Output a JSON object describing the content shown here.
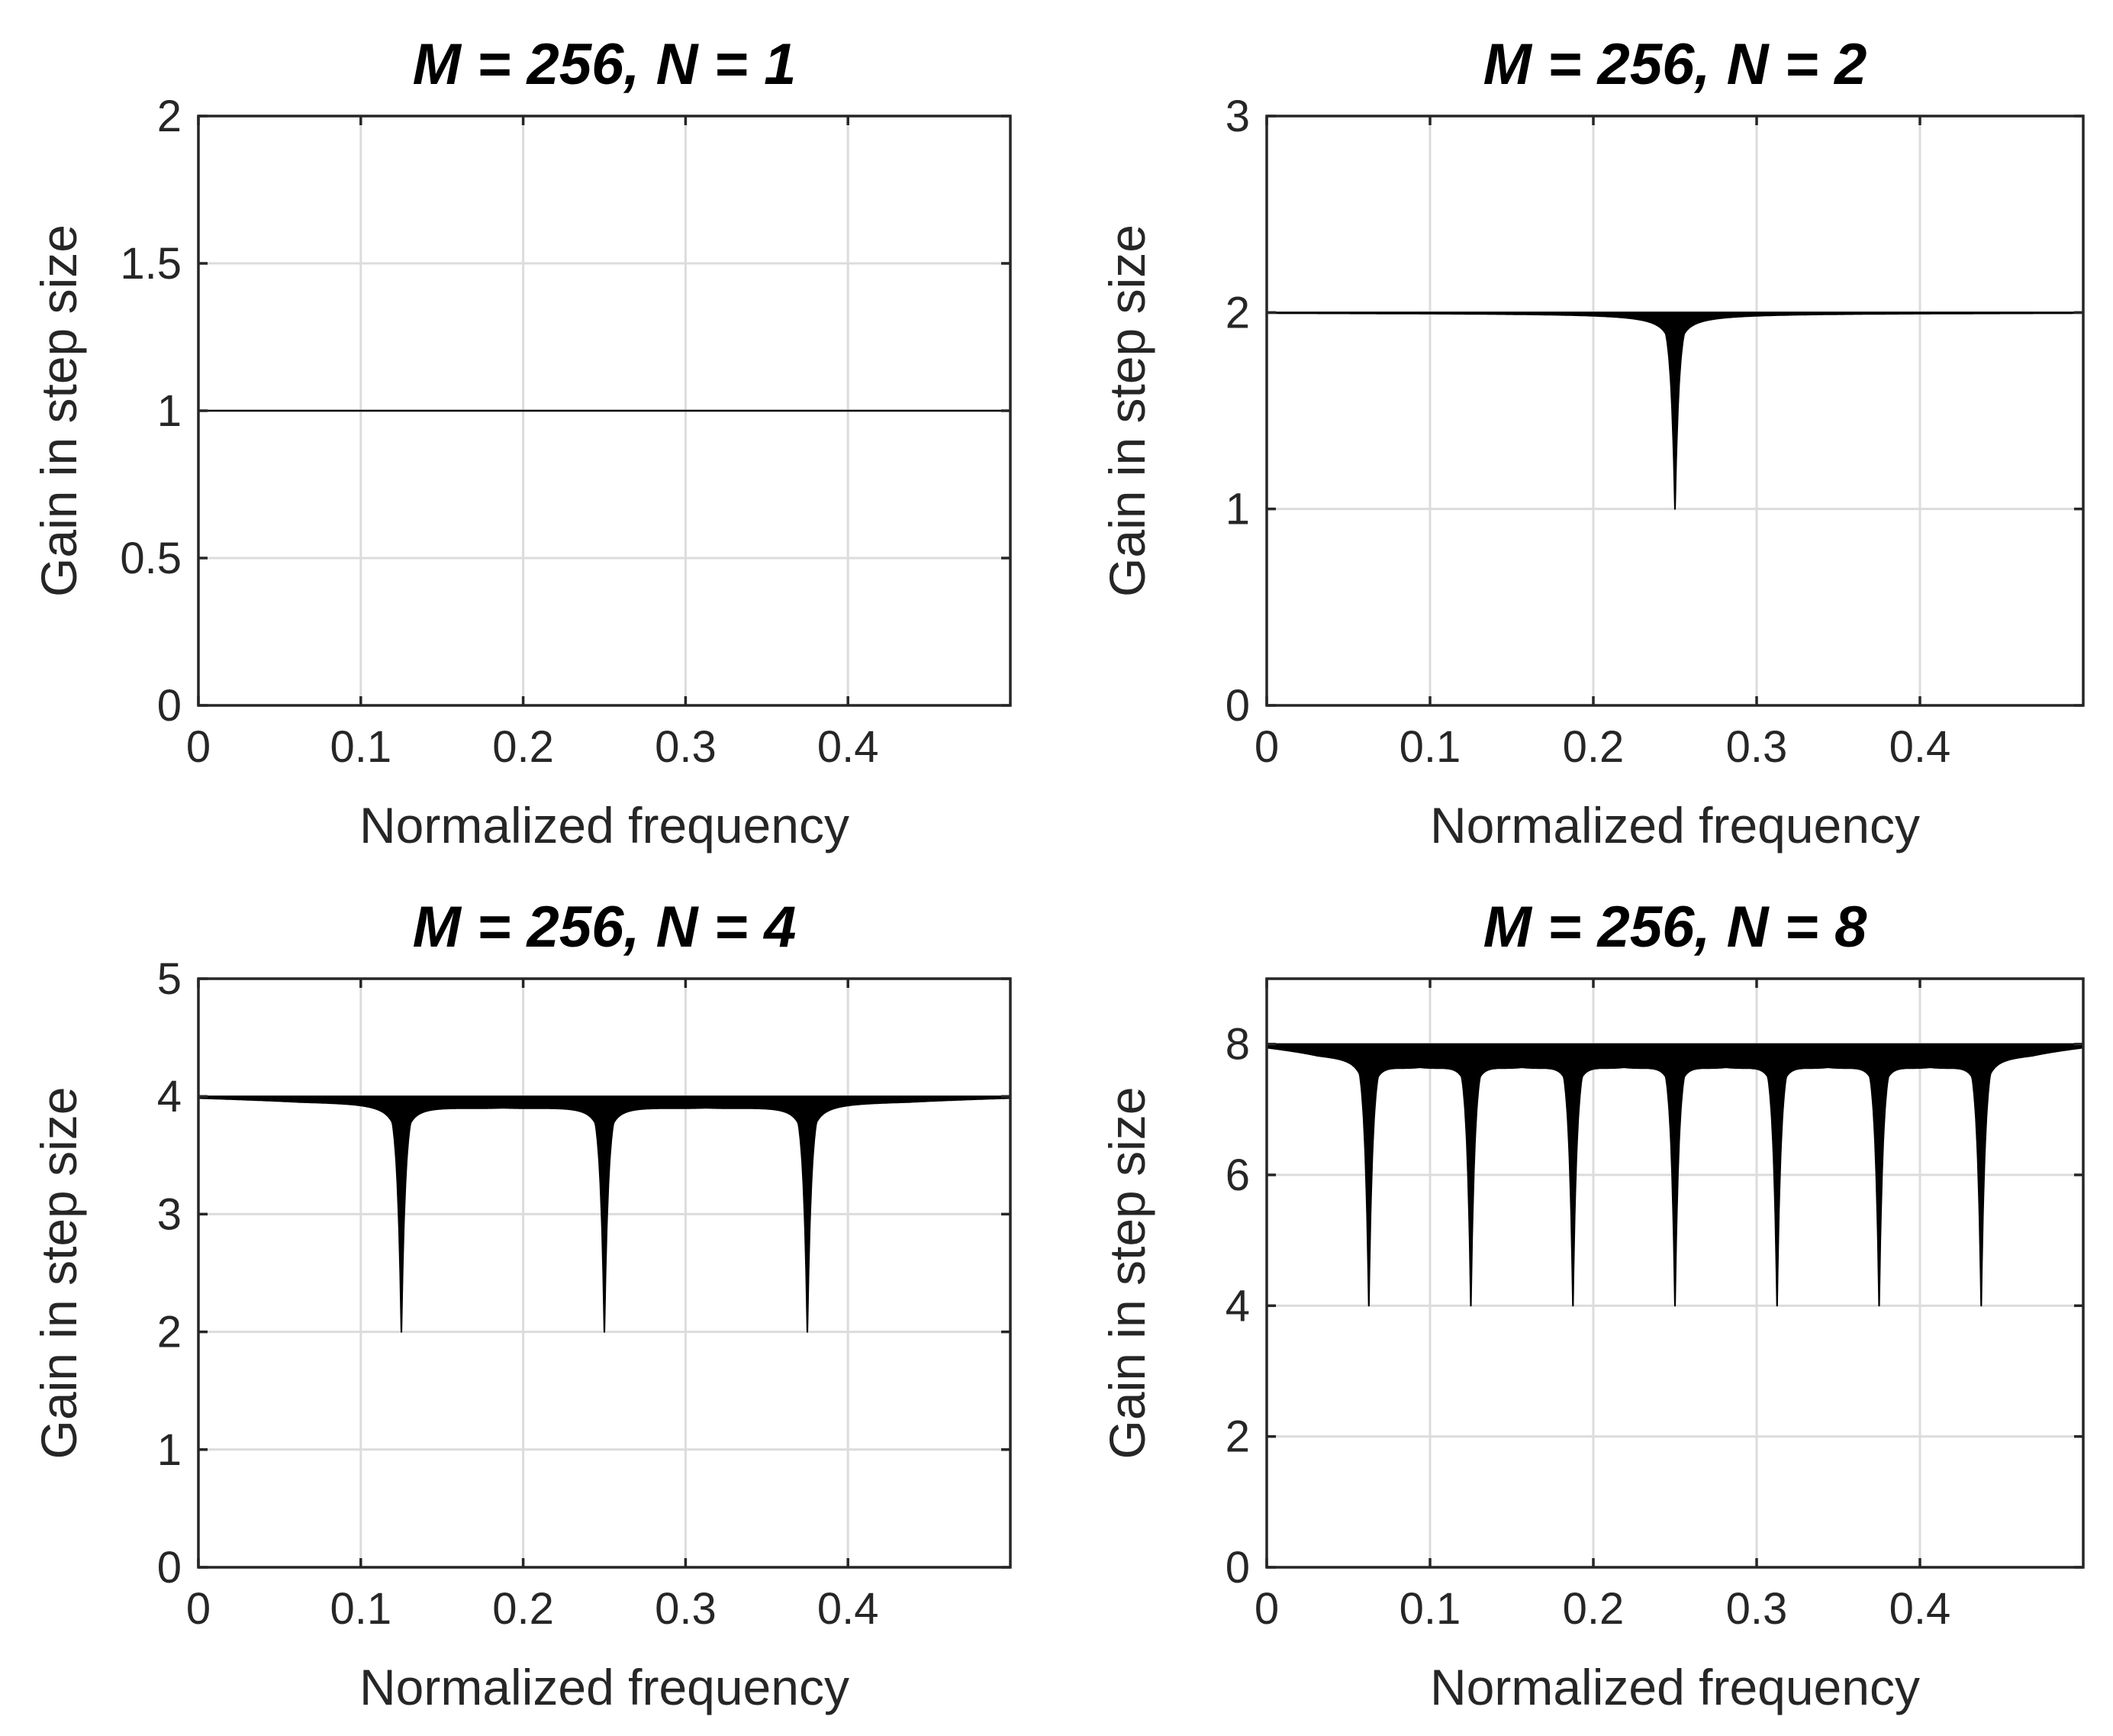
{
  "style": {
    "line_color": "#000000",
    "grid_color": "#dcdcdc",
    "axis_color": "#262626"
  },
  "chart_data": [
    {
      "type": "line",
      "title": "M = 256, N = 1",
      "xlabel": "Normalized frequency",
      "ylabel": "Gain in step size",
      "xlim": [
        0,
        0.5
      ],
      "ylim": [
        0,
        2
      ],
      "xticks": [
        0,
        0.1,
        0.2,
        0.3,
        0.4
      ],
      "xtick_labels": [
        "0",
        "0.1",
        "0.2",
        "0.3",
        "0.4"
      ],
      "yticks": [
        0,
        0.5,
        1,
        1.5,
        2
      ],
      "ytick_labels": [
        "0",
        "0.5",
        "1",
        "1.5",
        "2"
      ],
      "grid": true,
      "series": [
        {
          "name": "gain",
          "M": 256,
          "N": 1,
          "peak": 1,
          "envelope_min": 1,
          "floor": 1,
          "dip_frequencies": []
        }
      ]
    },
    {
      "type": "line",
      "title": "M = 256, N = 2",
      "xlabel": "Normalized frequency",
      "ylabel": "Gain in step size",
      "xlim": [
        0,
        0.5
      ],
      "ylim": [
        0,
        3
      ],
      "xticks": [
        0,
        0.1,
        0.2,
        0.3,
        0.4
      ],
      "xtick_labels": [
        "0",
        "0.1",
        "0.2",
        "0.3",
        "0.4"
      ],
      "yticks": [
        0,
        1,
        2,
        3
      ],
      "ytick_labels": [
        "0",
        "1",
        "2",
        "3"
      ],
      "grid": true,
      "series": [
        {
          "name": "gain",
          "M": 256,
          "N": 2,
          "peak": 2,
          "envelope_min": 1.98,
          "floor": 1,
          "dip_frequencies": [
            0.25
          ]
        }
      ]
    },
    {
      "type": "line",
      "title": "M = 256, N = 4",
      "xlabel": "Normalized frequency",
      "ylabel": "Gain in step size",
      "xlim": [
        0,
        0.5
      ],
      "ylim": [
        0,
        5
      ],
      "xticks": [
        0,
        0.1,
        0.2,
        0.3,
        0.4
      ],
      "xtick_labels": [
        "0",
        "0.1",
        "0.2",
        "0.3",
        "0.4"
      ],
      "yticks": [
        0,
        1,
        2,
        3,
        4,
        5
      ],
      "ytick_labels": [
        "0",
        "1",
        "2",
        "3",
        "4",
        "5"
      ],
      "grid": true,
      "series": [
        {
          "name": "gain",
          "M": 256,
          "N": 4,
          "peak": 4,
          "envelope_min": 3.93,
          "floor": 2,
          "dip_frequencies": [
            0.125,
            0.25,
            0.375
          ]
        }
      ]
    },
    {
      "type": "line",
      "title": "M = 256, N = 8",
      "xlabel": "Normalized frequency",
      "ylabel": "Gain in step size",
      "xlim": [
        0,
        0.5
      ],
      "ylim": [
        0,
        9
      ],
      "xticks": [
        0,
        0.1,
        0.2,
        0.3,
        0.4
      ],
      "xtick_labels": [
        "0",
        "0.1",
        "0.2",
        "0.3",
        "0.4"
      ],
      "yticks": [
        0,
        2,
        4,
        6,
        8
      ],
      "ytick_labels": [
        "0",
        "2",
        "4",
        "6",
        "8"
      ],
      "grid": true,
      "series": [
        {
          "name": "gain",
          "M": 256,
          "N": 8,
          "peak": 8,
          "envelope_min": 7.75,
          "floor": 4,
          "dip_frequencies": [
            0.0625,
            0.125,
            0.1875,
            0.25,
            0.3125,
            0.375,
            0.4375
          ]
        }
      ]
    }
  ]
}
